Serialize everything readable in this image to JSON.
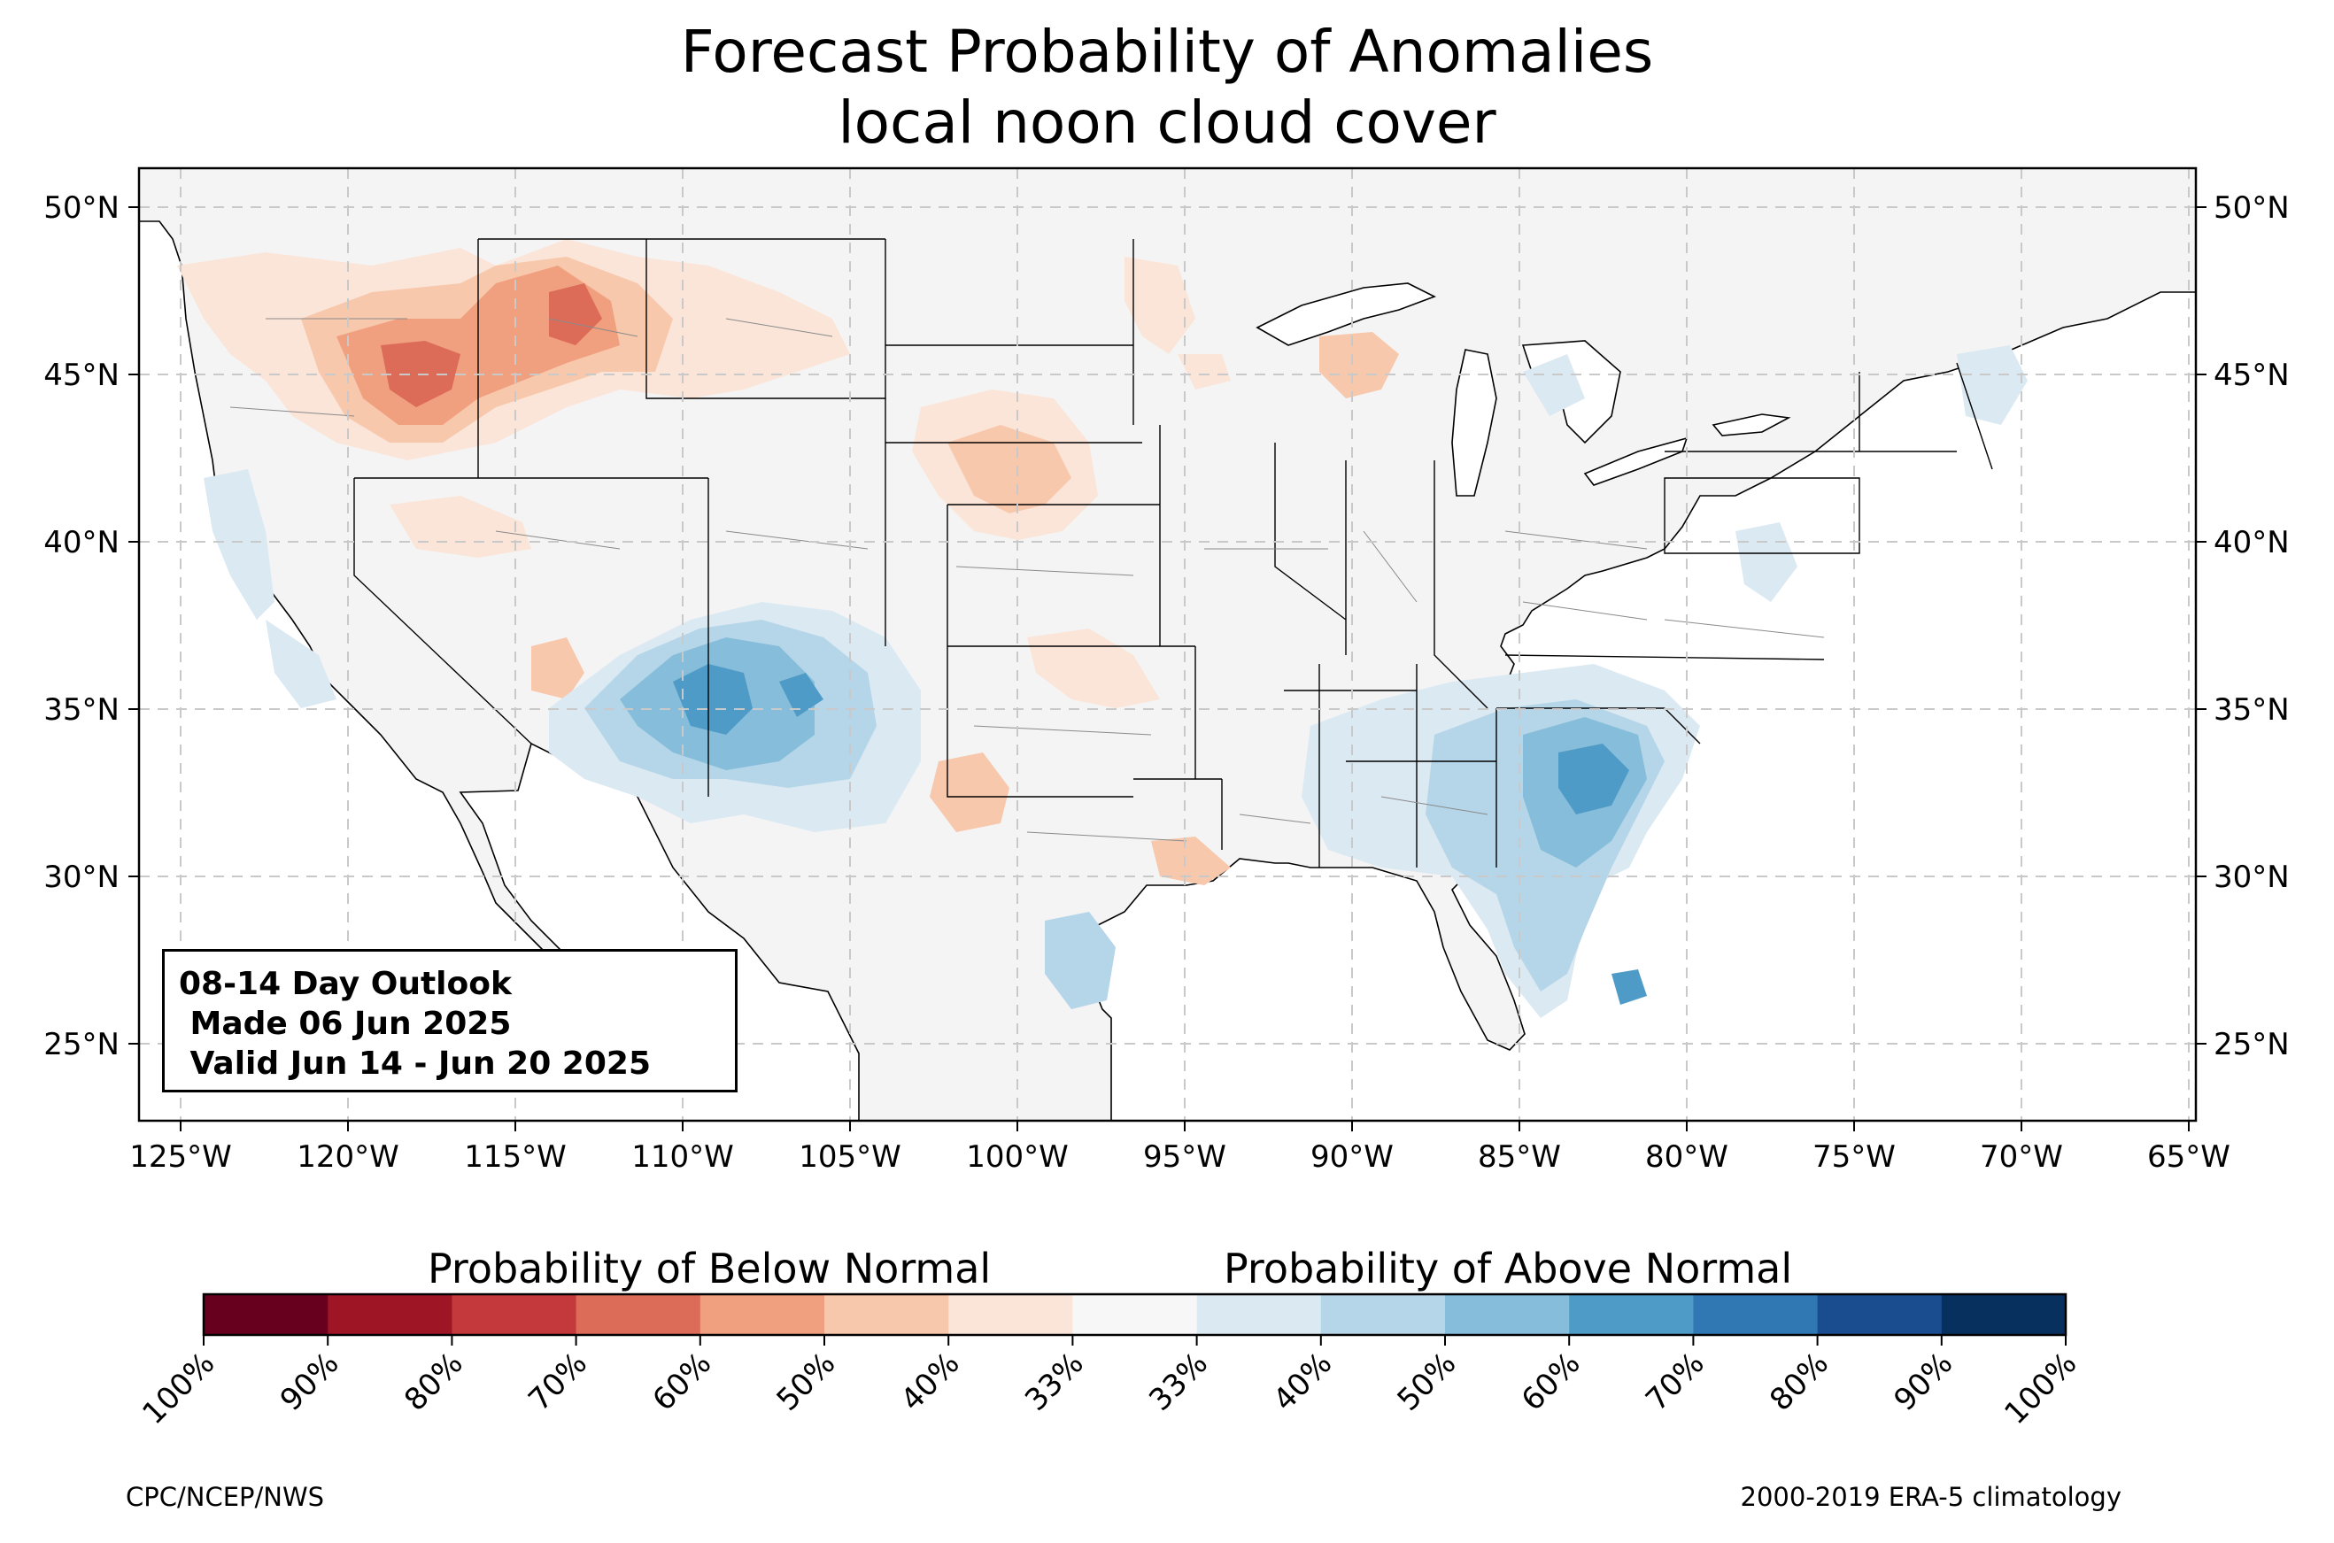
{
  "title": {
    "line1": "Forecast Probability of Anomalies",
    "line2": "local noon cloud cover"
  },
  "outlook": {
    "line1": "08-14 Day Outlook",
    "line2": " Made 06 Jun 2025",
    "line3": " Valid Jun 14 - Jun 20 2025"
  },
  "axes": {
    "lat_ticks": [
      "50°N",
      "45°N",
      "40°N",
      "35°N",
      "30°N",
      "25°N"
    ],
    "lon_ticks": [
      "125°W",
      "120°W",
      "115°W",
      "110°W",
      "105°W",
      "100°W",
      "95°W",
      "90°W",
      "85°W",
      "80°W",
      "75°W",
      "70°W",
      "65°W"
    ],
    "lon_range": [
      -126.3,
      -64.8
    ],
    "lat_range": [
      22.8,
      51.2
    ],
    "grid": "dashed"
  },
  "colorbar": {
    "below_label": "Probability of Below Normal",
    "above_label": "Probability of Above Normal",
    "tick_labels": [
      "100%",
      "90%",
      "80%",
      "70%",
      "60%",
      "50%",
      "40%",
      "33%",
      "33%",
      "40%",
      "50%",
      "60%",
      "70%",
      "80%",
      "90%",
      "100%"
    ],
    "colors": [
      "#67001f",
      "#9e1526",
      "#c4393c",
      "#dc6b58",
      "#f09f7f",
      "#f8c8ad",
      "#fbe5d8",
      "#f7f7f7",
      "#dbe9f2",
      "#b5d5e8",
      "#86bdda",
      "#4f9bc7",
      "#2f78b4",
      "#1a4d8f",
      "#08305f"
    ]
  },
  "footer": {
    "left": "CPC/NCEP/NWS",
    "right": "2000-2019 ERA-5 climatology"
  },
  "colors": {
    "land": "#f4f4f4",
    "below_light": "#fbe5d8",
    "below_mid": "#f8c8ad",
    "below_strong": "#f09f7f",
    "below_strongest": "#dc6b58",
    "above_light": "#dbe9f2",
    "above_mid": "#b5d5e8",
    "above_strong": "#86bdda",
    "above_strongest": "#4f9bc7"
  }
}
